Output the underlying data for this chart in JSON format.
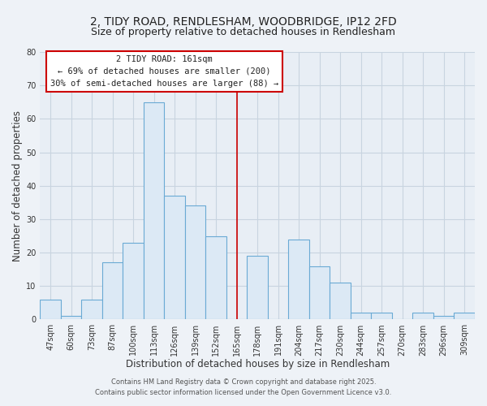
{
  "title": "2, TIDY ROAD, RENDLESHAM, WOODBRIDGE, IP12 2FD",
  "subtitle": "Size of property relative to detached houses in Rendlesham",
  "xlabel": "Distribution of detached houses by size in Rendlesham",
  "ylabel": "Number of detached properties",
  "bar_labels": [
    "47sqm",
    "60sqm",
    "73sqm",
    "87sqm",
    "100sqm",
    "113sqm",
    "126sqm",
    "139sqm",
    "152sqm",
    "165sqm",
    "178sqm",
    "191sqm",
    "204sqm",
    "217sqm",
    "230sqm",
    "244sqm",
    "257sqm",
    "270sqm",
    "283sqm",
    "296sqm",
    "309sqm"
  ],
  "bar_values": [
    6,
    1,
    6,
    17,
    23,
    65,
    37,
    34,
    25,
    0,
    19,
    0,
    24,
    16,
    11,
    2,
    2,
    0,
    2,
    1,
    2
  ],
  "bar_color": "#dce9f5",
  "bar_edge_color": "#6aaad4",
  "vline_x_index": 9,
  "vline_color": "#cc0000",
  "annotation_title": "2 TIDY ROAD: 161sqm",
  "annotation_line1": "← 69% of detached houses are smaller (200)",
  "annotation_line2": "30% of semi-detached houses are larger (88) →",
  "annotation_box_facecolor": "#ffffff",
  "annotation_box_edgecolor": "#cc0000",
  "ylim": [
    0,
    80
  ],
  "yticks": [
    0,
    10,
    20,
    30,
    40,
    50,
    60,
    70,
    80
  ],
  "footer1": "Contains HM Land Registry data © Crown copyright and database right 2025.",
  "footer2": "Contains public sector information licensed under the Open Government Licence v3.0.",
  "bg_color": "#eef2f7",
  "plot_bg_color": "#e8eef5",
  "grid_color": "#c8d4e0",
  "title_fontsize": 10,
  "subtitle_fontsize": 9,
  "xlabel_fontsize": 8.5,
  "ylabel_fontsize": 8.5,
  "tick_fontsize": 7,
  "footer_fontsize": 6,
  "ann_fontsize": 7.5
}
